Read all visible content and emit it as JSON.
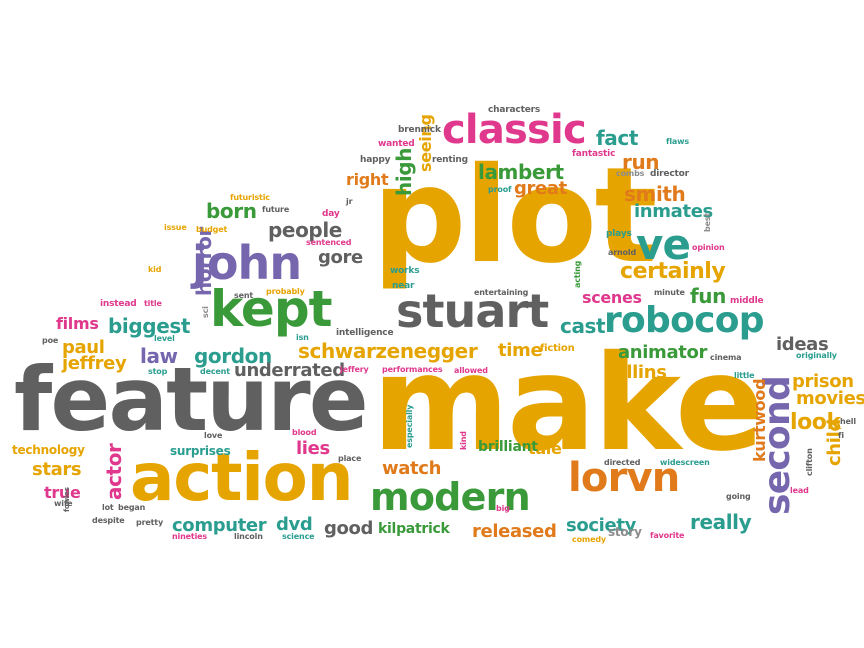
{
  "palette": {
    "gold": "#E6A400",
    "gray": "#606060",
    "green": "#3A9A3A",
    "purple": "#7566AE",
    "teal": "#2A9D8F",
    "magenta": "#E0388C",
    "orange": "#E07A1A",
    "lightgray": "#8C8C8C"
  },
  "words": [
    {
      "text": "plot",
      "color": "gold"
    },
    {
      "text": "make",
      "color": "gold"
    },
    {
      "text": "feature",
      "color": "gray"
    },
    {
      "text": "action",
      "color": "gold"
    },
    {
      "text": "classic",
      "color": "magenta"
    },
    {
      "text": "kept",
      "color": "green"
    },
    {
      "text": "stuart",
      "color": "gray"
    },
    {
      "text": "john",
      "color": "purple"
    },
    {
      "text": "robocop",
      "color": "teal"
    },
    {
      "text": "lorvn",
      "color": "orange"
    },
    {
      "text": "modern",
      "color": "green"
    },
    {
      "text": "second",
      "color": "purple"
    },
    {
      "text": "ve",
      "color": "teal"
    },
    {
      "text": "schwarzenegger",
      "color": "gold"
    },
    {
      "text": "certainly",
      "color": "gold"
    },
    {
      "text": "lambert",
      "color": "green"
    },
    {
      "text": "biggest",
      "color": "teal"
    },
    {
      "text": "gordon",
      "color": "teal"
    },
    {
      "text": "underrated",
      "color": "gray"
    },
    {
      "text": "people",
      "color": "gray"
    },
    {
      "text": "born",
      "color": "green"
    },
    {
      "text": "fact",
      "color": "teal"
    },
    {
      "text": "run",
      "color": "orange"
    },
    {
      "text": "smith",
      "color": "orange"
    },
    {
      "text": "inmates",
      "color": "teal"
    },
    {
      "text": "great",
      "color": "orange"
    },
    {
      "text": "right",
      "color": "orange"
    },
    {
      "text": "high",
      "color": "green"
    },
    {
      "text": "seeing",
      "color": "gold"
    },
    {
      "text": "horror",
      "color": "purple"
    },
    {
      "text": "gore",
      "color": "gray"
    },
    {
      "text": "paul",
      "color": "gold"
    },
    {
      "text": "jeffrey",
      "color": "gold"
    },
    {
      "text": "law",
      "color": "purple"
    },
    {
      "text": "films",
      "color": "magenta"
    },
    {
      "text": "time",
      "color": "gold"
    },
    {
      "text": "cast",
      "color": "teal"
    },
    {
      "text": "scenes",
      "color": "magenta"
    },
    {
      "text": "fun",
      "color": "green"
    },
    {
      "text": "animator",
      "color": "green"
    },
    {
      "text": "ideas",
      "color": "gray"
    },
    {
      "text": "prison",
      "color": "gold"
    },
    {
      "text": "movies",
      "color": "gold"
    },
    {
      "text": "look",
      "color": "gold"
    },
    {
      "text": "child",
      "color": "gold"
    },
    {
      "text": "collins",
      "color": "gold"
    },
    {
      "text": "kurtwood",
      "color": "orange"
    },
    {
      "text": "lies",
      "color": "magenta"
    },
    {
      "text": "watch",
      "color": "orange"
    },
    {
      "text": "tale",
      "color": "gold"
    },
    {
      "text": "brilliant",
      "color": "green"
    },
    {
      "text": "stars",
      "color": "gold"
    },
    {
      "text": "actor",
      "color": "magenta"
    },
    {
      "text": "true",
      "color": "magenta"
    },
    {
      "text": "computer",
      "color": "teal"
    },
    {
      "text": "dvd",
      "color": "teal"
    },
    {
      "text": "good",
      "color": "gray"
    },
    {
      "text": "kilpatrick",
      "color": "green"
    },
    {
      "text": "released",
      "color": "orange"
    },
    {
      "text": "society",
      "color": "teal"
    },
    {
      "text": "really",
      "color": "teal"
    },
    {
      "text": "story",
      "color": "lightgray"
    },
    {
      "text": "technology",
      "color": "gold"
    },
    {
      "text": "surprises",
      "color": "teal"
    },
    {
      "text": "characters",
      "color": "gray"
    },
    {
      "text": "brennick",
      "color": "gray"
    },
    {
      "text": "wanted",
      "color": "magenta"
    },
    {
      "text": "happy",
      "color": "gray"
    },
    {
      "text": "renting",
      "color": "gray"
    },
    {
      "text": "fantastic",
      "color": "magenta"
    },
    {
      "text": "combs",
      "color": "lightgray"
    },
    {
      "text": "director",
      "color": "gray"
    },
    {
      "text": "proof",
      "color": "teal"
    },
    {
      "text": "futuristic",
      "color": "gold"
    },
    {
      "text": "future",
      "color": "gray"
    },
    {
      "text": "day",
      "color": "magenta"
    },
    {
      "text": "jr",
      "color": "gray"
    },
    {
      "text": "issue",
      "color": "gold"
    },
    {
      "text": "budget",
      "color": "gold"
    },
    {
      "text": "sentenced",
      "color": "magenta"
    },
    {
      "text": "plays",
      "color": "teal"
    },
    {
      "text": "best",
      "color": "lightgray"
    },
    {
      "text": "opinion",
      "color": "magenta"
    },
    {
      "text": "arnold",
      "color": "gray"
    },
    {
      "text": "kid",
      "color": "gold"
    },
    {
      "text": "works",
      "color": "teal"
    },
    {
      "text": "near",
      "color": "teal"
    },
    {
      "text": "acting",
      "color": "green"
    },
    {
      "text": "entertaining",
      "color": "gray"
    },
    {
      "text": "minute",
      "color": "gray"
    },
    {
      "text": "middle",
      "color": "magenta"
    },
    {
      "text": "instead",
      "color": "magenta"
    },
    {
      "text": "title",
      "color": "magenta"
    },
    {
      "text": "sent",
      "color": "gray"
    },
    {
      "text": "probably",
      "color": "gold"
    },
    {
      "text": "sci",
      "color": "lightgray"
    },
    {
      "text": "level",
      "color": "teal"
    },
    {
      "text": "isn",
      "color": "teal"
    },
    {
      "text": "intelligence",
      "color": "gray"
    },
    {
      "text": "poe",
      "color": "gray"
    },
    {
      "text": "stop",
      "color": "teal"
    },
    {
      "text": "decent",
      "color": "teal"
    },
    {
      "text": "jeffery",
      "color": "magenta"
    },
    {
      "text": "performances",
      "color": "magenta"
    },
    {
      "text": "allowed",
      "color": "magenta"
    },
    {
      "text": "fiction",
      "color": "gold"
    },
    {
      "text": "cinema",
      "color": "gray"
    },
    {
      "text": "originally",
      "color": "teal"
    },
    {
      "text": "little",
      "color": "teal"
    },
    {
      "text": "hell",
      "color": "gray"
    },
    {
      "text": "fi",
      "color": "gray"
    },
    {
      "text": "love",
      "color": "gray"
    },
    {
      "text": "blood",
      "color": "magenta"
    },
    {
      "text": "place",
      "color": "gray"
    },
    {
      "text": "especially",
      "color": "teal"
    },
    {
      "text": "kind",
      "color": "magenta"
    },
    {
      "text": "directed",
      "color": "gray"
    },
    {
      "text": "widescreen",
      "color": "teal"
    },
    {
      "text": "clifton",
      "color": "gray"
    },
    {
      "text": "lead",
      "color": "magenta"
    },
    {
      "text": "going",
      "color": "gray"
    },
    {
      "text": "big",
      "color": "magenta"
    },
    {
      "text": "comedy",
      "color": "gold"
    },
    {
      "text": "favorite",
      "color": "magenta"
    },
    {
      "text": "lincoln",
      "color": "gray"
    },
    {
      "text": "science",
      "color": "teal"
    },
    {
      "text": "nineties",
      "color": "magenta"
    },
    {
      "text": "pretty",
      "color": "gray"
    },
    {
      "text": "despite",
      "color": "gray"
    },
    {
      "text": "wife",
      "color": "gray"
    },
    {
      "text": "fowles",
      "color": "gray"
    },
    {
      "text": "began",
      "color": "gray"
    },
    {
      "text": "lot",
      "color": "gray"
    },
    {
      "text": "flaws",
      "color": "teal"
    }
  ]
}
